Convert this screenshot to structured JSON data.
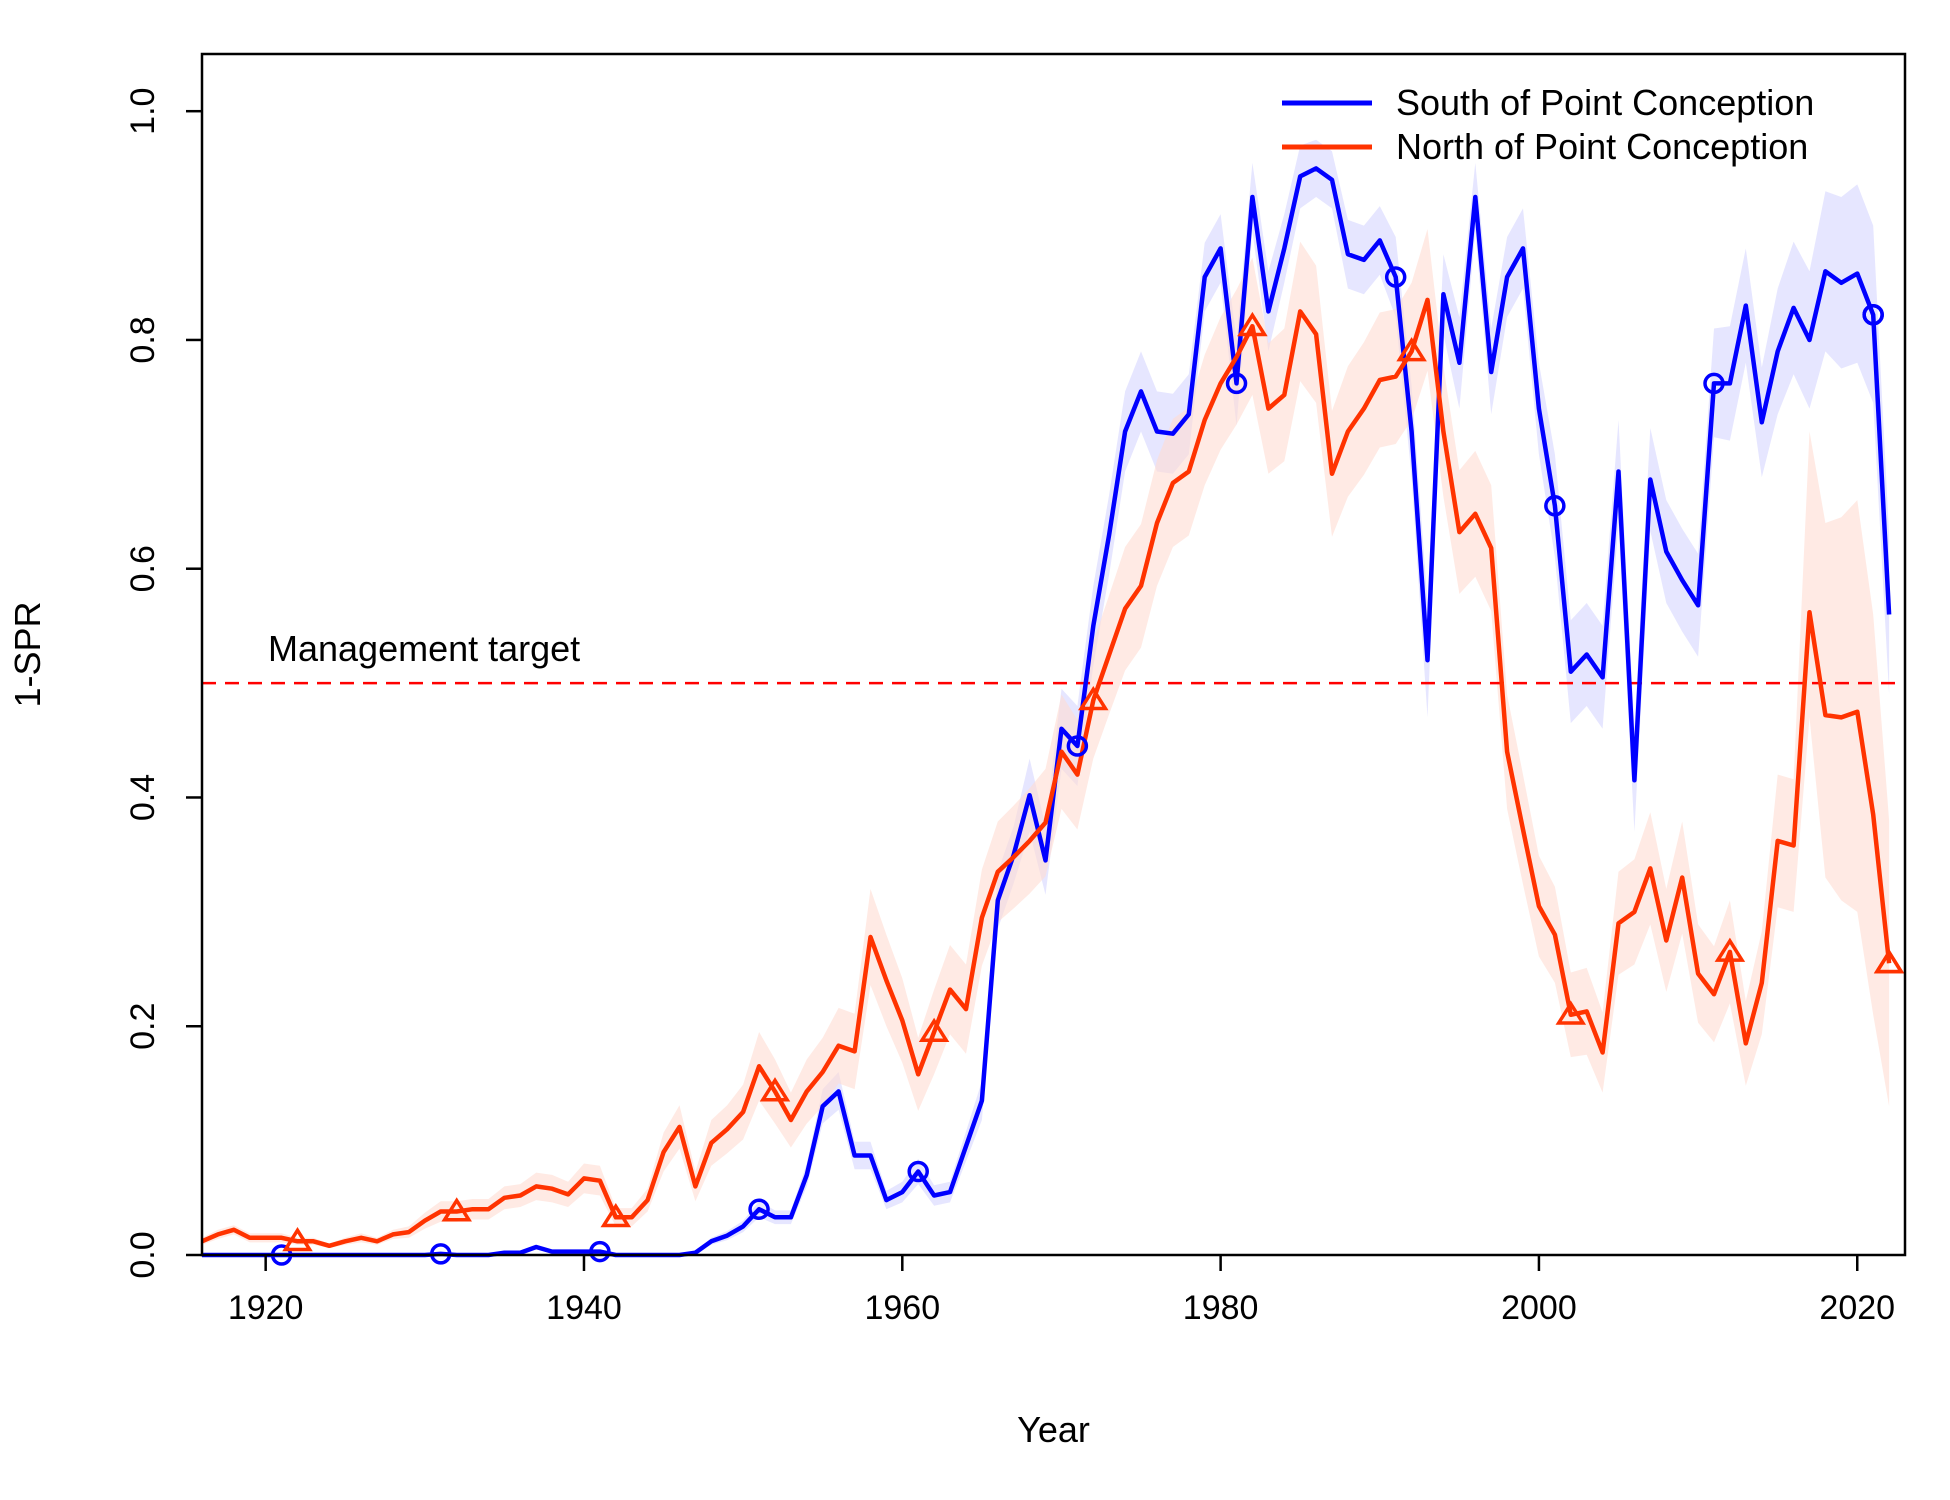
{
  "chart_data": {
    "type": "line",
    "xlabel": "Year",
    "ylabel": "1-SPR",
    "xlim": [
      1916,
      2023
    ],
    "ylim": [
      0,
      1.05
    ],
    "xticks": [
      1920,
      1940,
      1960,
      1980,
      2000,
      2020
    ],
    "yticks": [
      "0.0",
      "0.2",
      "0.4",
      "0.6",
      "0.8",
      "1.0"
    ],
    "grid": false,
    "legend": {
      "placement": "top-right"
    },
    "reference_line": {
      "y": 0.5,
      "label": "Management target",
      "color": "#ff0000",
      "style": "dashed"
    },
    "series": [
      {
        "name": "South of Point Conception",
        "color": "#0000ff",
        "band_color": "#d5d5ff",
        "marker": "circle",
        "marker_every": 10,
        "marker_start": 1921,
        "x_start": 1916,
        "values": [
          0.0,
          0.0,
          0.0,
          0.0,
          0.0,
          0.0,
          0.0,
          0.0,
          0.0,
          0.0,
          0.0,
          0.0,
          0.0,
          0.0,
          0.0,
          0.001,
          0.0,
          0.0,
          0.0,
          0.002,
          0.002,
          0.007,
          0.003,
          0.003,
          0.003,
          0.003,
          0.0,
          0.0,
          0.0,
          0.0,
          0.0,
          0.002,
          0.012,
          0.017,
          0.025,
          0.04,
          0.033,
          0.033,
          0.07,
          0.13,
          0.143,
          0.087,
          0.087,
          0.048,
          0.055,
          0.073,
          0.052,
          0.055,
          0.095,
          0.135,
          0.31,
          0.35,
          0.402,
          0.345,
          0.46,
          0.445,
          0.55,
          0.63,
          0.72,
          0.755,
          0.72,
          0.718,
          0.735,
          0.855,
          0.88,
          0.762,
          0.925,
          0.825,
          0.88,
          0.943,
          0.95,
          0.94,
          0.875,
          0.87,
          0.887,
          0.855,
          0.72,
          0.52,
          0.84,
          0.78,
          0.925,
          0.772,
          0.855,
          0.88,
          0.74,
          0.655,
          0.51,
          0.525,
          0.505,
          0.685,
          0.415,
          0.678,
          0.615,
          0.59,
          0.568,
          0.762,
          0.762,
          0.83,
          0.728,
          0.79,
          0.828,
          0.8,
          0.86,
          0.85,
          0.858,
          0.822,
          0.56
        ],
        "lower": [
          0.0,
          0.0,
          0.0,
          0.0,
          0.0,
          0.0,
          0.0,
          0.0,
          0.0,
          0.0,
          0.0,
          0.0,
          0.0,
          0.0,
          0.0,
          0.0,
          0.0,
          0.0,
          0.0,
          0.001,
          0.001,
          0.005,
          0.002,
          0.002,
          0.002,
          0.002,
          0.0,
          0.0,
          0.0,
          0.0,
          0.0,
          0.001,
          0.009,
          0.013,
          0.02,
          0.033,
          0.027,
          0.027,
          0.06,
          0.115,
          0.127,
          0.075,
          0.075,
          0.04,
          0.046,
          0.062,
          0.043,
          0.046,
          0.082,
          0.118,
          0.285,
          0.325,
          0.37,
          0.315,
          0.425,
          0.41,
          0.515,
          0.595,
          0.685,
          0.72,
          0.685,
          0.683,
          0.7,
          0.825,
          0.85,
          0.725,
          0.895,
          0.79,
          0.85,
          0.915,
          0.925,
          0.915,
          0.845,
          0.84,
          0.857,
          0.82,
          0.68,
          0.47,
          0.805,
          0.74,
          0.895,
          0.735,
          0.82,
          0.845,
          0.7,
          0.61,
          0.465,
          0.48,
          0.46,
          0.64,
          0.37,
          0.633,
          0.57,
          0.545,
          0.523,
          0.715,
          0.712,
          0.78,
          0.68,
          0.735,
          0.77,
          0.74,
          0.79,
          0.775,
          0.78,
          0.745,
          0.49
        ],
        "upper": [
          0.0,
          0.0,
          0.0,
          0.0,
          0.0,
          0.0,
          0.0,
          0.0,
          0.0,
          0.0,
          0.0,
          0.0,
          0.0,
          0.0,
          0.0,
          0.002,
          0.0,
          0.0,
          0.0,
          0.003,
          0.003,
          0.009,
          0.004,
          0.004,
          0.004,
          0.004,
          0.0,
          0.0,
          0.0,
          0.0,
          0.0,
          0.003,
          0.015,
          0.021,
          0.03,
          0.047,
          0.039,
          0.039,
          0.08,
          0.145,
          0.16,
          0.099,
          0.099,
          0.056,
          0.064,
          0.084,
          0.061,
          0.064,
          0.108,
          0.152,
          0.335,
          0.375,
          0.434,
          0.375,
          0.495,
          0.48,
          0.585,
          0.665,
          0.755,
          0.79,
          0.755,
          0.753,
          0.77,
          0.885,
          0.91,
          0.8,
          0.955,
          0.86,
          0.91,
          0.97,
          0.975,
          0.965,
          0.905,
          0.9,
          0.917,
          0.89,
          0.76,
          0.57,
          0.875,
          0.82,
          0.955,
          0.81,
          0.89,
          0.915,
          0.78,
          0.7,
          0.555,
          0.57,
          0.55,
          0.73,
          0.46,
          0.723,
          0.66,
          0.635,
          0.613,
          0.81,
          0.812,
          0.88,
          0.776,
          0.845,
          0.886,
          0.86,
          0.93,
          0.925,
          0.936,
          0.9,
          0.63
        ]
      },
      {
        "name": "North of Point Conception",
        "color": "#ff3300",
        "band_color": "#ffdcd2",
        "marker": "triangle",
        "marker_every": 10,
        "marker_start": 1922,
        "x_start": 1916,
        "values": [
          0.012,
          0.018,
          0.022,
          0.015,
          0.015,
          0.015,
          0.012,
          0.012,
          0.008,
          0.012,
          0.015,
          0.012,
          0.018,
          0.02,
          0.03,
          0.038,
          0.038,
          0.04,
          0.04,
          0.05,
          0.052,
          0.06,
          0.058,
          0.053,
          0.067,
          0.065,
          0.033,
          0.033,
          0.048,
          0.09,
          0.112,
          0.06,
          0.098,
          0.11,
          0.125,
          0.165,
          0.143,
          0.118,
          0.143,
          0.16,
          0.183,
          0.178,
          0.278,
          0.24,
          0.205,
          0.158,
          0.195,
          0.232,
          0.215,
          0.295,
          0.335,
          0.348,
          0.362,
          0.378,
          0.44,
          0.42,
          0.485,
          0.525,
          0.565,
          0.585,
          0.64,
          0.675,
          0.685,
          0.73,
          0.762,
          0.785,
          0.812,
          0.74,
          0.752,
          0.825,
          0.805,
          0.683,
          0.72,
          0.74,
          0.765,
          0.768,
          0.79,
          0.835,
          0.72,
          0.632,
          0.648,
          0.618,
          0.44,
          0.372,
          0.305,
          0.28,
          0.21,
          0.213,
          0.177,
          0.29,
          0.3,
          0.338,
          0.275,
          0.33,
          0.246,
          0.228,
          0.265,
          0.185,
          0.238,
          0.362,
          0.358,
          0.562,
          0.472,
          0.47,
          0.475,
          0.385,
          0.255
        ],
        "lower": [
          0.009,
          0.014,
          0.018,
          0.011,
          0.011,
          0.011,
          0.009,
          0.009,
          0.006,
          0.009,
          0.011,
          0.009,
          0.014,
          0.015,
          0.023,
          0.029,
          0.029,
          0.031,
          0.031,
          0.04,
          0.042,
          0.048,
          0.046,
          0.042,
          0.054,
          0.052,
          0.025,
          0.025,
          0.038,
          0.073,
          0.093,
          0.047,
          0.078,
          0.089,
          0.101,
          0.135,
          0.115,
          0.094,
          0.115,
          0.13,
          0.15,
          0.145,
          0.236,
          0.2,
          0.168,
          0.126,
          0.158,
          0.193,
          0.176,
          0.253,
          0.291,
          0.303,
          0.316,
          0.331,
          0.39,
          0.372,
          0.434,
          0.473,
          0.511,
          0.531,
          0.585,
          0.619,
          0.629,
          0.673,
          0.704,
          0.726,
          0.752,
          0.683,
          0.694,
          0.764,
          0.745,
          0.628,
          0.663,
          0.682,
          0.706,
          0.709,
          0.73,
          0.773,
          0.663,
          0.578,
          0.593,
          0.563,
          0.39,
          0.324,
          0.261,
          0.238,
          0.173,
          0.175,
          0.142,
          0.245,
          0.254,
          0.289,
          0.23,
          0.281,
          0.203,
          0.186,
          0.22,
          0.148,
          0.193,
          0.304,
          0.3,
          0.47,
          0.33,
          0.31,
          0.3,
          0.21,
          0.13
        ],
        "upper": [
          0.015,
          0.022,
          0.026,
          0.019,
          0.019,
          0.019,
          0.015,
          0.015,
          0.01,
          0.015,
          0.019,
          0.015,
          0.022,
          0.025,
          0.037,
          0.047,
          0.047,
          0.049,
          0.049,
          0.06,
          0.062,
          0.072,
          0.07,
          0.064,
          0.08,
          0.078,
          0.041,
          0.041,
          0.058,
          0.107,
          0.131,
          0.073,
          0.118,
          0.131,
          0.149,
          0.195,
          0.171,
          0.142,
          0.171,
          0.19,
          0.216,
          0.211,
          0.32,
          0.28,
          0.242,
          0.19,
          0.232,
          0.271,
          0.254,
          0.337,
          0.379,
          0.393,
          0.408,
          0.425,
          0.49,
          0.468,
          0.536,
          0.577,
          0.619,
          0.639,
          0.695,
          0.731,
          0.741,
          0.787,
          0.82,
          0.844,
          0.872,
          0.797,
          0.81,
          0.886,
          0.865,
          0.738,
          0.777,
          0.798,
          0.824,
          0.827,
          0.85,
          0.897,
          0.777,
          0.686,
          0.703,
          0.673,
          0.49,
          0.42,
          0.349,
          0.322,
          0.247,
          0.251,
          0.212,
          0.335,
          0.346,
          0.387,
          0.32,
          0.379,
          0.289,
          0.27,
          0.31,
          0.222,
          0.283,
          0.42,
          0.416,
          0.72,
          0.64,
          0.645,
          0.66,
          0.56,
          0.38
        ]
      }
    ]
  }
}
